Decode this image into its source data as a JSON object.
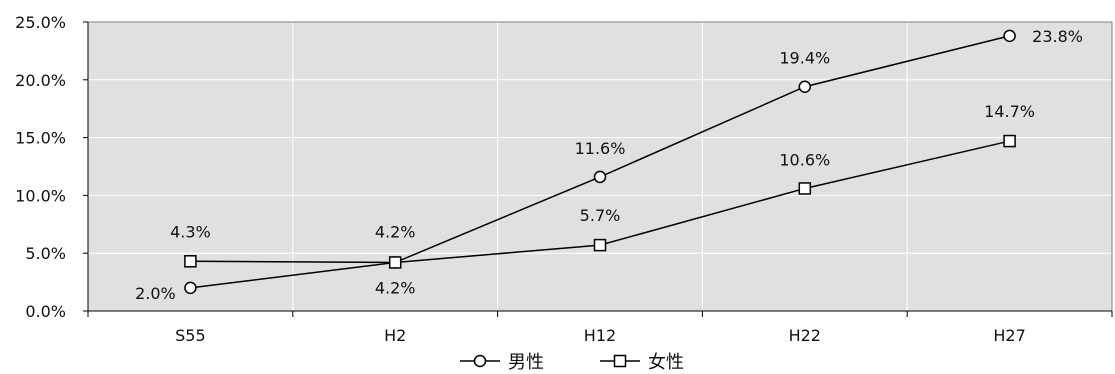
{
  "chart_data": {
    "type": "line",
    "categories": [
      "S55",
      "H2",
      "H12",
      "H22",
      "H27"
    ],
    "ylim": [
      0,
      25
    ],
    "yticks": [
      "0.0%",
      "5.0%",
      "10.0%",
      "15.0%",
      "20.0%",
      "25.0%"
    ],
    "grid": true,
    "legend_position": "bottom",
    "series": [
      {
        "name": "男性",
        "marker": "circle",
        "values": [
          2.0,
          4.2,
          11.6,
          19.4,
          23.8
        ],
        "labels": [
          "2.0%",
          "4.2%",
          "11.6%",
          "19.4%",
          "23.8%"
        ]
      },
      {
        "name": "女性",
        "marker": "square",
        "values": [
          4.3,
          4.2,
          5.7,
          10.6,
          14.7
        ],
        "labels": [
          "4.3%",
          "4.2%",
          "5.7%",
          "10.6%",
          "14.7%"
        ]
      }
    ],
    "colors": {
      "plot_bg": "#e0e0e0",
      "line": "#000000",
      "marker_fill": "#ffffff",
      "grid": "#ffffff"
    }
  }
}
